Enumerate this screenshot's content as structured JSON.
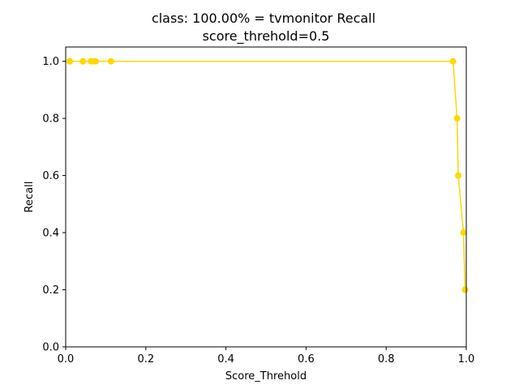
{
  "chart_data": {
    "type": "line",
    "title_line1": "class: 100.00% = tvmonitor Recall",
    "title_line2": "score_threhold=0.5",
    "xlabel": "Score_Threhold",
    "ylabel": "Recall",
    "xlim": [
      0.0,
      1.0
    ],
    "ylim": [
      0.0,
      1.05
    ],
    "x_ticks": [
      "0.0",
      "0.2",
      "0.4",
      "0.6",
      "0.8",
      "1.0"
    ],
    "y_ticks": [
      "0.0",
      "0.2",
      "0.4",
      "0.6",
      "0.8",
      "1.0"
    ],
    "grid": false,
    "series": [
      {
        "color": "#ffd700",
        "marker": "circle",
        "x": [
          0.01,
          0.01,
          0.043,
          0.063,
          0.07,
          0.075,
          0.113,
          0.967,
          0.977,
          0.98,
          0.993,
          0.997
        ],
        "y": [
          1.0,
          1.0,
          1.0,
          1.0,
          1.0,
          1.0,
          1.0,
          1.0,
          0.8,
          0.6,
          0.4,
          0.2
        ]
      }
    ]
  }
}
